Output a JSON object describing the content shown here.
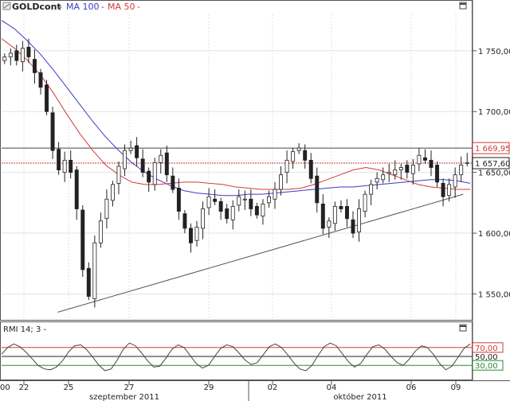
{
  "header": {
    "symbol": "GOLDcont",
    "separator": "-",
    "ma100_label": "MA 100",
    "ma50_label": "MA 50",
    "ma100_color": "#3b3bc8",
    "ma50_color": "#d23b3b",
    "icons": [
      "chart-icon",
      "maximize-icon"
    ]
  },
  "chart_data": {
    "type": "candlestick",
    "ylim": [
      1530,
      1780
    ],
    "y_ticks": [
      {
        "value": 1750,
        "label": "1 750,00"
      },
      {
        "value": 1700,
        "label": "1 700,00"
      },
      {
        "value": 1650,
        "label": "1 650,00"
      },
      {
        "value": 1600,
        "label": "1 600,00"
      },
      {
        "value": 1550,
        "label": "1 550,00"
      }
    ],
    "price_tags": [
      {
        "value": 1669.95,
        "label": "1 669,95",
        "color": "#d23b3b",
        "line_color": "#444444"
      },
      {
        "value": 1657.6,
        "label": "1 657,60",
        "color": "#222222",
        "line_color": "#d23b3b"
      }
    ],
    "x_ticks": [
      "22",
      "25",
      "27",
      "29",
      "02",
      "04",
      "06",
      "09"
    ],
    "x_edge_label": "00",
    "month_labels": [
      "szeptember 2011",
      "október 2011"
    ],
    "trendline": [
      [
        0.12,
        1535
      ],
      [
        0.985,
        1632
      ]
    ],
    "closes": [
      1745,
      1748,
      1742,
      1752,
      1745,
      1732,
      1720,
      1700,
      1668,
      1652,
      1660,
      1650,
      1620,
      1570,
      1548,
      1592,
      1610,
      1628,
      1640,
      1655,
      1668,
      1670,
      1662,
      1650,
      1642,
      1658,
      1664,
      1648,
      1636,
      1618,
      1604,
      1592,
      1605,
      1620,
      1630,
      1626,
      1618,
      1612,
      1622,
      1630,
      1628,
      1620,
      1615,
      1624,
      1630,
      1636,
      1648,
      1660,
      1667,
      1670,
      1660,
      1645,
      1625,
      1604,
      1610,
      1622,
      1620,
      1612,
      1600,
      1620,
      1632,
      1640,
      1645,
      1648,
      1650,
      1652,
      1654,
      1650,
      1656,
      1664,
      1660,
      1654,
      1642,
      1630,
      1640,
      1648,
      1656,
      1658
    ],
    "ma50": [
      1760,
      1752,
      1742,
      1730,
      1715,
      1698,
      1682,
      1668,
      1656,
      1648,
      1642,
      1640,
      1640,
      1641,
      1642,
      1642,
      1641,
      1640,
      1638,
      1637,
      1636,
      1636,
      1636,
      1637,
      1640,
      1644,
      1648,
      1652,
      1654,
      1652,
      1648,
      1644,
      1640,
      1638,
      1637,
      1636,
      1636
    ],
    "ma100": [
      1775,
      1768,
      1758,
      1747,
      1734,
      1720,
      1706,
      1692,
      1679,
      1668,
      1658,
      1650,
      1644,
      1639,
      1635,
      1633,
      1632,
      1631,
      1631,
      1632,
      1632,
      1633,
      1634,
      1635,
      1636,
      1637,
      1638,
      1638,
      1639,
      1640,
      1641,
      1642,
      1643,
      1644,
      1644,
      1643,
      1641
    ]
  },
  "rmi": {
    "label": "RMI 14; 3 -",
    "levels": [
      {
        "value": 70,
        "label": "70,00",
        "color": "#d23b3b"
      },
      {
        "value": 50,
        "label": "50,00",
        "color": "#222222"
      },
      {
        "value": 30,
        "label": "30,00",
        "color": "#2e8b2e"
      }
    ],
    "values": [
      55,
      70,
      78,
      72,
      60,
      45,
      30,
      22,
      20,
      26,
      40,
      60,
      74,
      76,
      65,
      48,
      30,
      18,
      22,
      42,
      66,
      80,
      74,
      58,
      40,
      26,
      28,
      46,
      66,
      76,
      70,
      52,
      34,
      24,
      30,
      50,
      68,
      76,
      72,
      58,
      42,
      32,
      36,
      54,
      72,
      78,
      70,
      54,
      36,
      22,
      18,
      30,
      52,
      72,
      80,
      74,
      56,
      38,
      26,
      34,
      54,
      72,
      76,
      66,
      50,
      36,
      30,
      44,
      62,
      74,
      70,
      54,
      34,
      20,
      28,
      48,
      68,
      78
    ]
  }
}
